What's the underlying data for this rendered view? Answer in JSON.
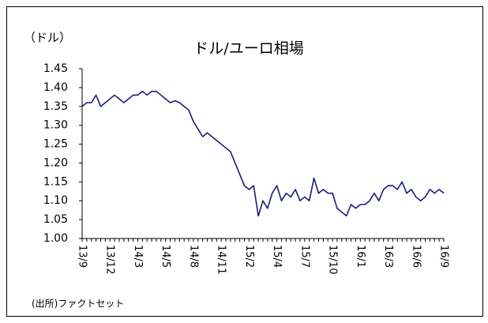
{
  "chart_data": {
    "type": "line",
    "title": "ドル/ユーロ相場",
    "y_label": "（ドル）",
    "source": "(出所)ファクトセット",
    "categories": [
      "13/9",
      null,
      null,
      null,
      null,
      null,
      "13/12",
      null,
      null,
      null,
      null,
      null,
      "14/3",
      null,
      null,
      null,
      null,
      null,
      "14/5",
      null,
      null,
      null,
      null,
      null,
      "14/8",
      null,
      null,
      null,
      null,
      null,
      "14/11",
      null,
      null,
      null,
      null,
      null,
      "15/2",
      null,
      null,
      null,
      null,
      null,
      "15/4",
      null,
      null,
      null,
      null,
      null,
      "15/7",
      null,
      null,
      null,
      null,
      null,
      "15/10",
      null,
      null,
      null,
      null,
      null,
      "16/1",
      null,
      null,
      null,
      null,
      null,
      "16/3",
      null,
      null,
      null,
      null,
      null,
      "16/6",
      null,
      null,
      null,
      null,
      null,
      "16/9"
    ],
    "series": [
      {
        "name": "ドル/ユーロ",
        "color": "#1c1c7a",
        "values": [
          1.35,
          1.36,
          1.36,
          1.38,
          1.35,
          1.36,
          1.37,
          1.38,
          1.37,
          1.36,
          1.37,
          1.38,
          1.38,
          1.39,
          1.38,
          1.39,
          1.39,
          1.38,
          1.37,
          1.36,
          1.365,
          1.36,
          1.35,
          1.34,
          1.31,
          1.29,
          1.27,
          1.28,
          1.27,
          1.26,
          1.25,
          1.24,
          1.23,
          1.2,
          1.17,
          1.14,
          1.13,
          1.14,
          1.06,
          1.1,
          1.08,
          1.12,
          1.14,
          1.1,
          1.12,
          1.11,
          1.13,
          1.1,
          1.11,
          1.1,
          1.16,
          1.12,
          1.13,
          1.12,
          1.12,
          1.08,
          1.07,
          1.06,
          1.09,
          1.08,
          1.09,
          1.09,
          1.1,
          1.12,
          1.1,
          1.13,
          1.14,
          1.14,
          1.13,
          1.15,
          1.12,
          1.13,
          1.11,
          1.1,
          1.11,
          1.13,
          1.12,
          1.13,
          1.12
        ]
      }
    ],
    "ylim": [
      1.0,
      1.45
    ],
    "yticks": [
      {
        "value": 1.0,
        "label": "1.00"
      },
      {
        "value": 1.05,
        "label": "1.05"
      },
      {
        "value": 1.1,
        "label": "1.10"
      },
      {
        "value": 1.15,
        "label": "1.15"
      },
      {
        "value": 1.2,
        "label": "1.20"
      },
      {
        "value": 1.25,
        "label": "1.25"
      },
      {
        "value": 1.3,
        "label": "1.30"
      },
      {
        "value": 1.35,
        "label": "1.35"
      },
      {
        "value": 1.4,
        "label": "1.40"
      },
      {
        "value": 1.45,
        "label": "1.45"
      }
    ],
    "grid": false
  }
}
